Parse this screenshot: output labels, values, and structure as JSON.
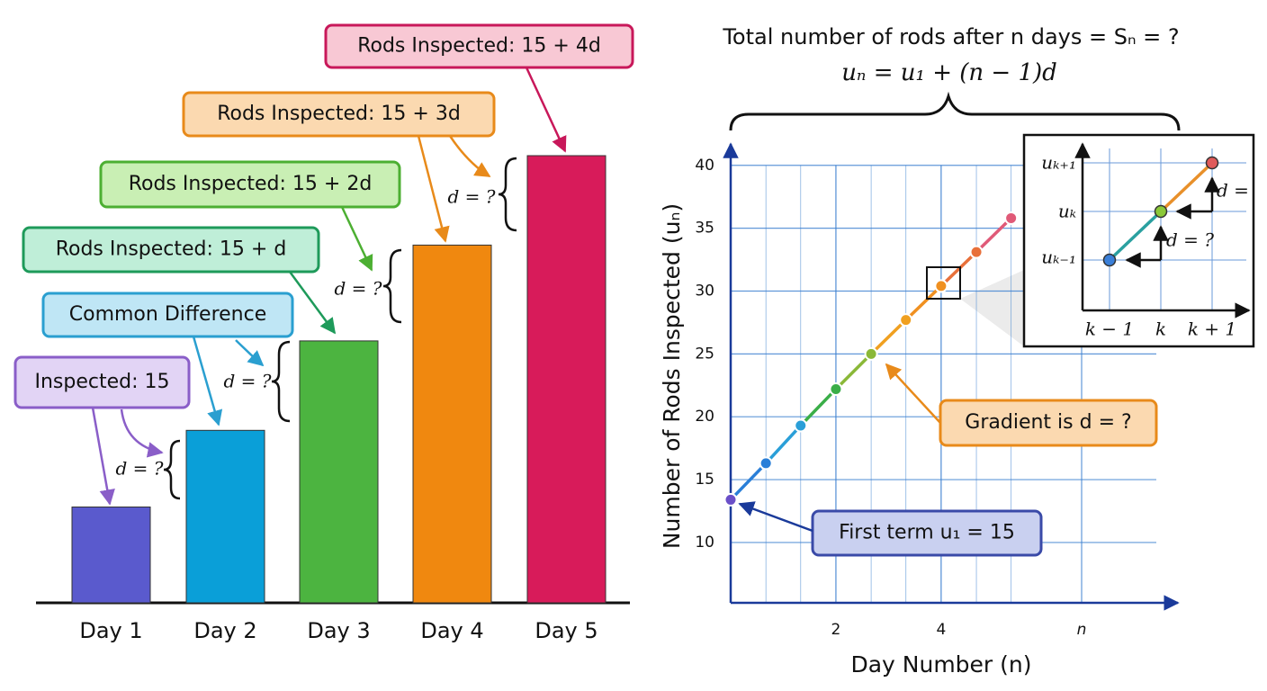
{
  "chart_data": [
    {
      "type": "bar",
      "categories": [
        "Day 1",
        "Day 2",
        "Day 3",
        "Day 4",
        "Day 5"
      ],
      "values": [
        15,
        27,
        41,
        56,
        70
      ],
      "colors": [
        "#5a5acd",
        "#0a9fd8",
        "#4cb440",
        "#f0880f",
        "#d81b5a"
      ],
      "annotations": [
        "Inspected: 15",
        "Common Difference",
        "Rods Inspected: 15 + d",
        "Rods Inspected: 15 + 2d",
        "Rods Inspected: 15 + 3d",
        "Rods Inspected: 15 + 4d"
      ],
      "brace_labels": [
        "d = ?",
        "d = ?",
        "d = ?",
        "d = ?"
      ]
    },
    {
      "type": "line",
      "title": "Total number of rods after n days = Sₙ = ?",
      "subtitle": "uₙ = u₁ + (n − 1)d",
      "x_label": "Day Number (n)",
      "y_label": "Number of Rods Inspected (uₙ)",
      "x": [
        0,
        0.67,
        1.33,
        2,
        2.67,
        3.33,
        4,
        4.67,
        5.33
      ],
      "series": [
        {
          "values": [
            13.4,
            16.3,
            19.3,
            22.2,
            25,
            27.7,
            30.4,
            33.1,
            35.8
          ],
          "colors": [
            "#6a4fc8",
            "#2a7fd8",
            "#2a9fd8",
            "#3aae48",
            "#8ab838",
            "#f0a020",
            "#f09020",
            "#e8703a",
            "#e05a78"
          ]
        }
      ],
      "xlim": [
        0,
        8.5
      ],
      "ylim": [
        5.2,
        41.7
      ],
      "xticks": [
        2,
        4,
        {
          "value": 6.67,
          "label": "n"
        }
      ],
      "yticks": [
        10,
        15,
        20,
        25,
        30,
        35,
        40
      ],
      "grid": true,
      "annotations": [
        "Gradient is d = ?",
        "First term u₁ = 15"
      ]
    }
  ],
  "inset": {
    "y_labels": [
      "uₖ₊₁",
      "uₖ",
      "uₖ₋₁"
    ],
    "x_labels": [
      "k − 1",
      "k",
      "k + 1"
    ],
    "step_labels": [
      "d =",
      "d = ?"
    ]
  }
}
